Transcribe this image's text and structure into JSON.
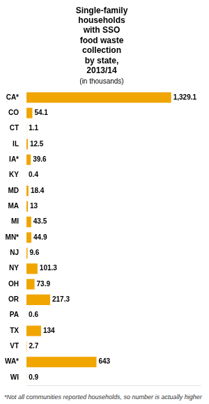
{
  "chart_data": {
    "type": "bar",
    "orientation": "horizontal",
    "title": "Single-family\nhouseholds\nwith SSO\nfood waste\ncollection\nby state,\n2013/14",
    "subtitle": "(in thousands)",
    "annotations": [
      "*Not all communities reported households, so number is actually higher"
    ],
    "categories": [
      "CA*",
      "CO",
      "CT",
      "IL",
      "IA*",
      "KY",
      "MD",
      "MA",
      "MI",
      "MN*",
      "NJ",
      "NY",
      "OH",
      "OR",
      "PA",
      "TX",
      "VT",
      "WA*",
      "WI"
    ],
    "values": [
      1329.1,
      54.1,
      1.1,
      12.5,
      39.6,
      0.4,
      18.4,
      13,
      43.5,
      44.9,
      9.6,
      101.3,
      73.9,
      217.3,
      0.6,
      134,
      2.7,
      643,
      0.9
    ],
    "value_labels": [
      "1,329.1",
      "54.1",
      "1.1",
      "12.5",
      "39.6",
      "0.4",
      "18.4",
      "13",
      "43.5",
      "44.9",
      "9.6",
      "101.3",
      "73.9",
      "217.3",
      "0.6",
      "134",
      "2.7",
      "643",
      "0.9"
    ],
    "color": "#F0A500",
    "xlim": [
      0,
      1600
    ],
    "grid": false,
    "data_labels": true,
    "tick_labels": "y"
  }
}
